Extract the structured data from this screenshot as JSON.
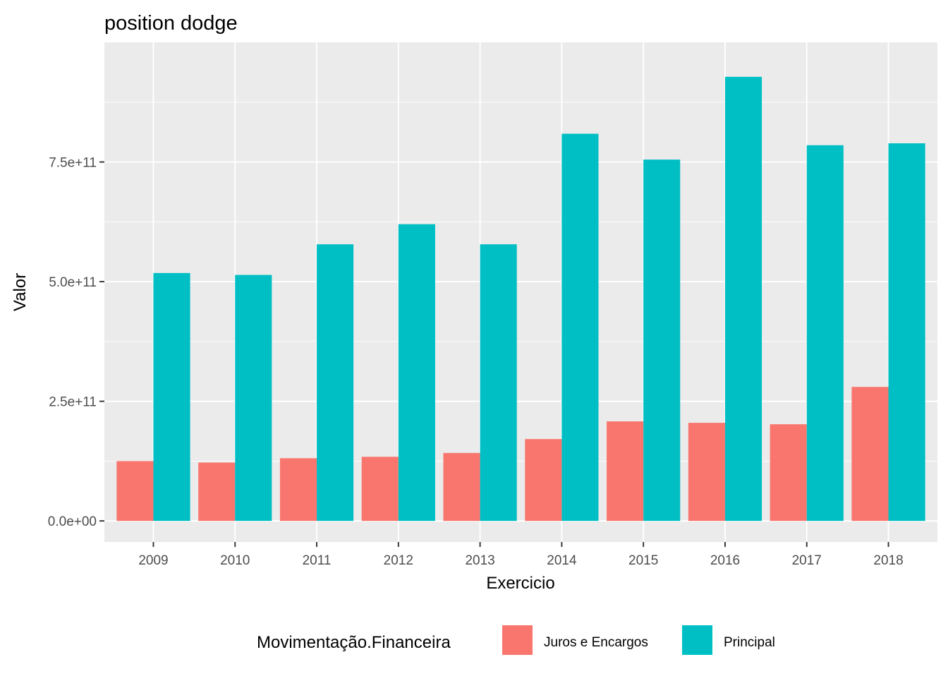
{
  "chart_data": {
    "type": "bar",
    "title": "position dodge",
    "xlabel": "Exercicio",
    "ylabel": "Valor",
    "categories": [
      "2009",
      "2010",
      "2011",
      "2012",
      "2013",
      "2014",
      "2015",
      "2016",
      "2017",
      "2018"
    ],
    "series": [
      {
        "name": "Juros e Encargos",
        "color": "#F8766D",
        "values": [
          125000000000.0,
          122000000000.0,
          131000000000.0,
          134000000000.0,
          142000000000.0,
          171000000000.0,
          208000000000.0,
          205000000000.0,
          202000000000.0,
          280000000000.0
        ]
      },
      {
        "name": "Principal",
        "color": "#00BFC4",
        "values": [
          518000000000.0,
          514000000000.0,
          578000000000.0,
          620000000000.0,
          578000000000.0,
          809000000000.0,
          755000000000.0,
          928000000000.0,
          785000000000.0,
          789000000000.0
        ]
      }
    ],
    "ylim": [
      -44000000000.0,
      1000000000000.0
    ],
    "yticks": [
      {
        "value": 0,
        "label": "0.0e+00"
      },
      {
        "value": 250000000000.0,
        "label": "2.5e+11"
      },
      {
        "value": 500000000000.0,
        "label": "5.0e+11"
      },
      {
        "value": 750000000000.0,
        "label": "7.5e+11"
      }
    ],
    "y_minor_grid": [
      125000000000.0,
      375000000000.0,
      625000000000.0,
      875000000000.0
    ],
    "grid": true,
    "panel_background": "#EBEBEB",
    "grid_color": "#FFFFFF",
    "legend": {
      "title": "Movimentação.Financeira",
      "position": "bottom"
    }
  }
}
